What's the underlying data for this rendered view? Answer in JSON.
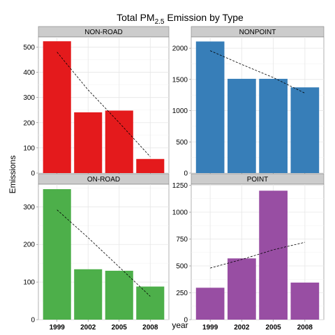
{
  "chart_data": {
    "type": "bar",
    "title": {
      "main": "Total PM",
      "sub": "2.5",
      "rest": " Emission by Type"
    },
    "xlabel": "year",
    "ylabel": "Emissions",
    "categories": [
      "1999",
      "2002",
      "2005",
      "2008"
    ],
    "grid": true,
    "trendline": "dashed linear fit",
    "panels": [
      {
        "name": "NON-ROAD",
        "color": "#E41A1C",
        "values": [
          523,
          241,
          248,
          56
        ],
        "ylim": [
          0,
          540
        ],
        "yticks": [
          0,
          100,
          200,
          300,
          400,
          500
        ],
        "trend": [
          480,
          330,
          200,
          65
        ]
      },
      {
        "name": "NONPOINT",
        "color": "#377EB8",
        "values": [
          2108,
          1510,
          1510,
          1373
        ],
        "ylim": [
          0,
          2180
        ],
        "yticks": [
          0,
          500,
          1000,
          1500,
          2000
        ],
        "trend": [
          1960,
          1740,
          1530,
          1280
        ]
      },
      {
        "name": "ON-ROAD",
        "color": "#4DAF4A",
        "values": [
          347,
          134,
          130,
          88
        ],
        "ylim": [
          0,
          360
        ],
        "yticks": [
          0,
          100,
          200,
          300
        ],
        "trend": [
          292,
          218,
          140,
          62
        ]
      },
      {
        "name": "POINT",
        "color": "#984EA3",
        "values": [
          297,
          570,
          1200,
          345
        ],
        "ylim": [
          0,
          1260
        ],
        "yticks": [
          0,
          250,
          500,
          750,
          1000,
          1250
        ],
        "trend": [
          480,
          560,
          650,
          720
        ]
      }
    ]
  }
}
